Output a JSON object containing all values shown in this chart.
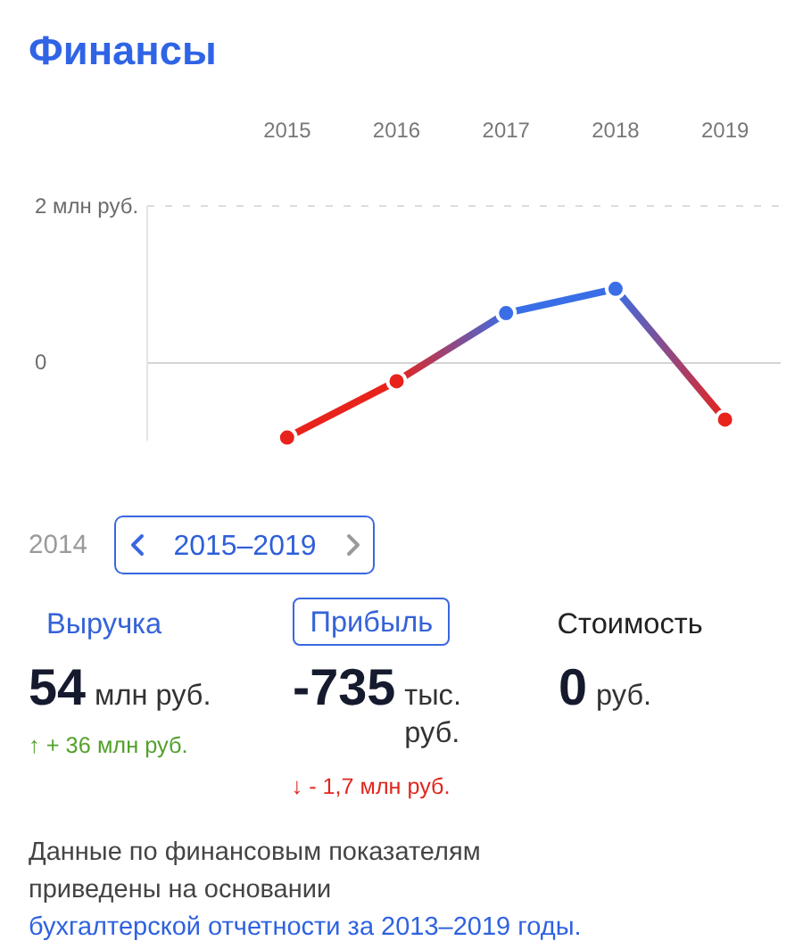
{
  "chart_data": [
    {
      "type": "line",
      "title": "Финансы",
      "categories": [
        "2015",
        "2016",
        "2017",
        "2018",
        "2019"
      ],
      "series": [
        {
          "colors": [
            "#e8231c",
            "#e8231c",
            "#3a6ee6",
            "#3a6ee6",
            "#e8231c"
          ],
          "values": [
            -0.97,
            -0.25,
            0.62,
            0.93,
            -0.74
          ]
        }
      ],
      "ylim": [
        -1,
        2
      ],
      "yticks": [
        {
          "value": 2,
          "label": "2 млн руб."
        },
        0
      ],
      "grid": "y",
      "marker": "circle"
    },
    {
      "type": "other",
      "annotations": [
        "2014",
        "2015–2019",
        "Выручка",
        "Прибыль",
        "Стоимость",
        "54",
        "млн руб.",
        "↑ + 36 млн руб.",
        "-735",
        "тыс. руб.",
        "↓ - 1,7 млн руб.",
        "0",
        "руб.",
        "Данные по финансовым показателям приведены на основании",
        "бухгалтерской отчетности за 2013–2019 годы."
      ]
    }
  ]
}
